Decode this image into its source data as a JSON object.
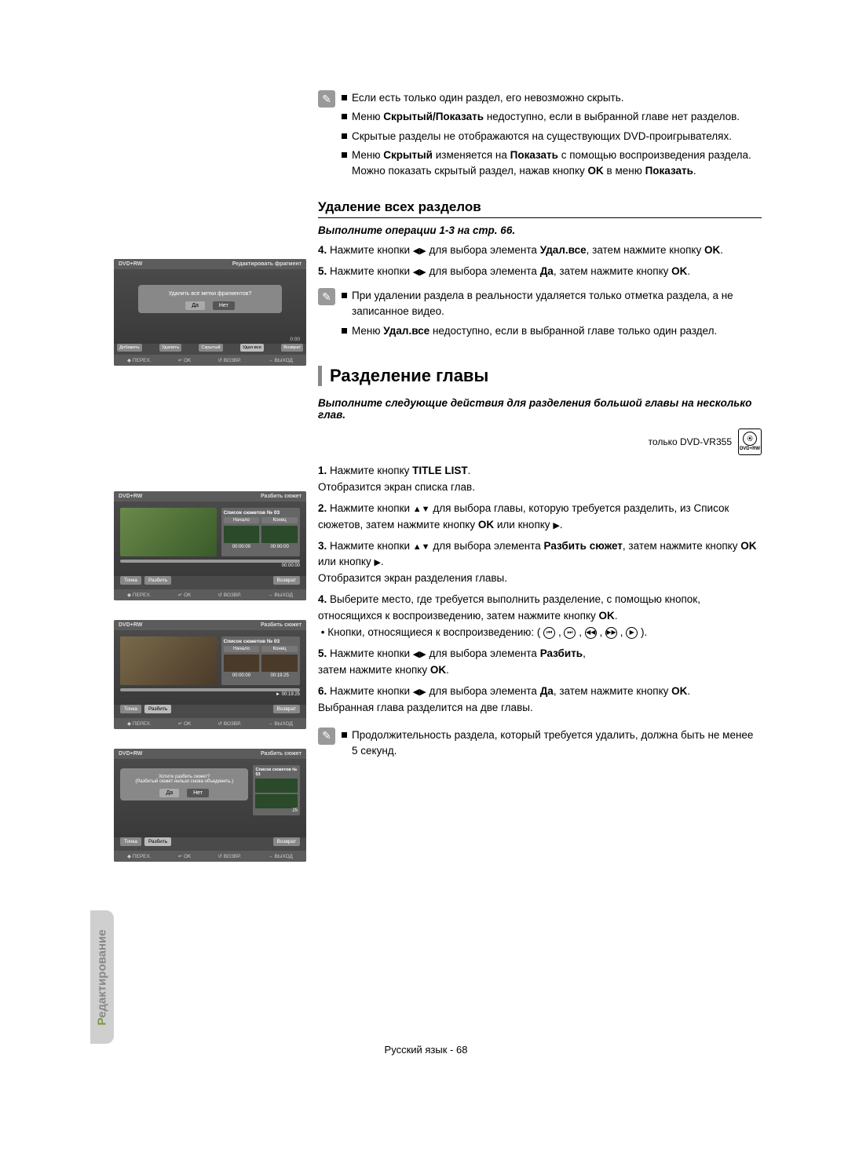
{
  "verticalTab": {
    "firstLetter": "Р",
    "rest": "едактирование"
  },
  "noteIcon": "✎",
  "topNotes": [
    "Если есть только один раздел, его невозможно скрыть.",
    "Меню <b>Скрытый/Показать</b> недоступно, если в выбранной главе нет разделов.",
    "Скрытые разделы не отображаются на существующих DVD-проигрывателях.",
    "Меню <b>Скрытый</b> изменяется на <b>Показать</b> с помощью воспроизведения раздела. Можно показать скрытый раздел, нажав кнопку <b>OK</b> в меню <b>Показать</b>."
  ],
  "section1": {
    "title": "Удаление всех разделов",
    "lead": "Выполните операции 1-3 на стр. 66.",
    "steps": [
      "<b>4.</b> Нажмите кнопки <span class='triangle-lr'></span> для выбора элемента <b>Удал.все</b>, затем нажмите кнопку <b>OK</b>.",
      "<b>5.</b> Нажмите кнопки <span class='triangle-lr'></span> для выбора элемента <b>Да</b>, затем нажмите кнопку <b>OK</b>."
    ],
    "notes": [
      "При удалении раздела в реальности удаляется только отметка раздела, а не записанное видео.",
      "Меню <b>Удал.все</b> недоступно, если в выбранной главе только один раздел."
    ]
  },
  "section2": {
    "title": "Разделение главы",
    "lead": "Выполните следующие действия для разделения большой главы на несколько глав.",
    "model": "только DVD-VR355",
    "discLabel": "DVD+RW",
    "steps": [
      "<b>1.</b> Нажмите кнопку <b>TITLE LIST</b>.<br>Отобразится экран списка глав.",
      "<b>2.</b> Нажмите кнопки <span class='triangle-ud'></span> для выбора главы, которую требуется разделить, из Список сюжетов, затем нажмите кнопку <b>OK</b> или кнопку <span class='triangle-r'></span>.",
      "<b>3.</b> Нажмите кнопки <span class='triangle-ud'></span> для выбора элемента <b>Разбить сюжет</b>, затем нажмите кнопку <b>OK</b> или кнопку <span class='triangle-r'></span>.<br>Отобразится экран разделения главы.",
      "<b>4.</b> Выберите место, где требуется выполнить разделение, с помощью кнопок, относящихся к воспроизведению, затем нажмите кнопку <b>OK</b>.<br>&nbsp;• Кнопки, относящиеся к воспроизведению: ( <span class='pb-icon'>⏮</span> , <span class='pb-icon'>⏭</span> , <span class='pb-icon'>◀◀</span> , <span class='pb-icon'>▶▶</span> , <span class='pb-icon'>▶</span> ).",
      "<b>5.</b> Нажмите кнопки <span class='triangle-lr'></span> для выбора элемента <b>Разбить</b>,<br>затем нажмите кнопку <b>OK</b>.",
      "<b>6.</b> Нажмите кнопки <span class='triangle-lr'></span> для выбора элемента <b>Да</b>, затем нажмите кнопку <b>OK</b>.<br>Выбранная глава разделится на две главы."
    ],
    "notes": [
      "Продолжительность раздела, который требуется удалить, должна быть не менее 5 секунд."
    ]
  },
  "footer": "Русский язык - 68",
  "screenshots": {
    "common": {
      "disc": "DVD+RW",
      "navMove": "◆ ПЕРЕХ.",
      "navOk": "↵ OK",
      "navReturn": "↺ ВОЗВР.",
      "navExit": "→ ВЫХОД"
    },
    "s1": {
      "title": "Редактировать фрагмент",
      "dialogText": "Удалить все метки фрагментов?",
      "yes": "Да",
      "no": "Нет",
      "time": "0:00",
      "actions": [
        "Добавить",
        "Удалить",
        "Скрытый",
        "Удал.все",
        "Возврат"
      ]
    },
    "s2": {
      "title": "Разбить сюжет",
      "sideTitle": "Список сюжетов № 03",
      "start": "Начало",
      "end": "Конец",
      "t1": "00:00:00",
      "t2": "00:00:00",
      "prog": "00:00:00",
      "btnPoint": "Точка",
      "btnSplit": "Разбить",
      "btnReturn": "Возврат"
    },
    "s3": {
      "title": "Разбить сюжет",
      "sideTitle": "Список сюжетов № 03",
      "start": "Начало",
      "end": "Конец",
      "t1": "00:00:00",
      "t2": "00:19:25",
      "prog": "► 00:19:25",
      "btnPoint": "Точка",
      "btnSplit": "Разбить",
      "btnReturn": "Возврат"
    },
    "s4": {
      "title": "Разбить сюжет",
      "sideTitle": "Список сюжетов № 03",
      "dialogText": "Хотите разбить сюжет?\n(Разбитый сюжет нельзя снова объединить.)",
      "yes": "Да",
      "no": "Нет",
      "suffix": "25",
      "btnPoint": "Точка",
      "btnSplit": "Разбить",
      "btnReturn": "Возврат"
    }
  }
}
